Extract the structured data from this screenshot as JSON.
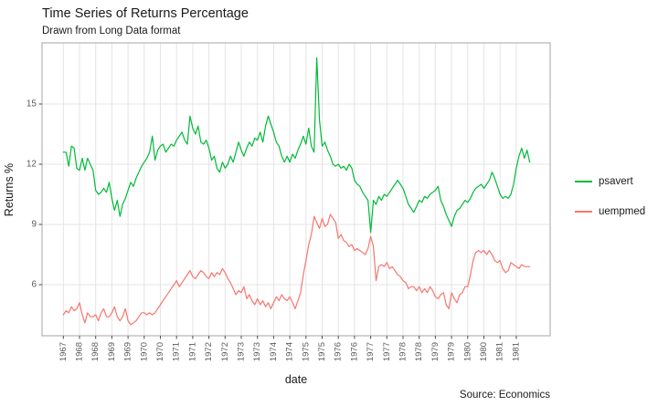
{
  "header": {
    "title": "Time Series of Returns Percentage",
    "subtitle": "Drawn from Long Data format",
    "caption": "Source: Economics"
  },
  "axes": {
    "x_title": "date",
    "y_title": "Returns %",
    "y_ticks": [
      6,
      9,
      12,
      15
    ],
    "x_tick_labels": [
      "1967",
      "1968",
      "1968",
      "1969",
      "1969",
      "1970",
      "1970",
      "1971",
      "1971",
      "1972",
      "1972",
      "1973",
      "1973",
      "1974",
      "1974",
      "1975",
      "1975",
      "1976",
      "1976",
      "1977",
      "1977",
      "1978",
      "1978",
      "1979",
      "1979",
      "1980",
      "1980",
      "1981",
      "1981"
    ]
  },
  "legend": {
    "items": [
      {
        "label": "psavert",
        "color": "#00BA38"
      },
      {
        "label": "uempmed",
        "color": "#F8766D"
      }
    ]
  },
  "chart_data": {
    "type": "line",
    "title": "Time Series of Returns Percentage",
    "subtitle": "Drawn from Long Data format",
    "caption": "Source: Economics",
    "xlabel": "date",
    "ylabel": "Returns %",
    "x_start": "1967-07",
    "x_frequency": "monthly",
    "x_tick_interval_months": 6,
    "ylim": [
      3.4,
      18.1
    ],
    "y_gridlines": [
      6,
      9,
      12,
      15
    ],
    "grid": "major-only",
    "legend_position": "right",
    "series": [
      {
        "name": "psavert",
        "color": "#00BA38",
        "values": [
          12.6,
          12.6,
          11.9,
          12.9,
          12.8,
          11.8,
          11.7,
          12.3,
          11.7,
          12.3,
          12.0,
          11.7,
          10.7,
          10.5,
          10.6,
          10.8,
          10.6,
          11.1,
          10.3,
          9.7,
          10.2,
          9.4,
          10.0,
          10.3,
          10.7,
          11.1,
          10.9,
          11.3,
          11.6,
          11.9,
          12.1,
          12.3,
          12.6,
          13.4,
          12.2,
          12.7,
          12.9,
          13.0,
          12.6,
          12.8,
          13.0,
          12.9,
          13.2,
          13.4,
          13.6,
          13.2,
          13.0,
          14.4,
          13.8,
          13.5,
          13.9,
          13.1,
          13.0,
          13.2,
          12.8,
          12.2,
          12.4,
          11.8,
          11.6,
          12.1,
          11.8,
          12.0,
          12.4,
          12.1,
          12.6,
          13.1,
          12.7,
          12.4,
          12.8,
          13.1,
          12.9,
          13.3,
          13.2,
          13.6,
          13.1,
          13.9,
          14.4,
          14.0,
          13.6,
          13.1,
          12.9,
          12.4,
          12.1,
          12.4,
          12.1,
          12.5,
          12.3,
          12.7,
          13.0,
          13.4,
          13.0,
          13.8,
          12.9,
          12.6,
          17.3,
          14.2,
          12.9,
          13.1,
          12.7,
          12.4,
          12.0,
          11.9,
          12.0,
          11.8,
          11.9,
          11.7,
          12.0,
          11.8,
          11.2,
          11.0,
          10.9,
          10.6,
          10.4,
          10.2,
          8.6,
          10.2,
          10.0,
          10.4,
          10.2,
          10.5,
          10.4,
          10.6,
          10.8,
          11.0,
          11.2,
          11.0,
          10.8,
          10.4,
          10.0,
          9.8,
          9.6,
          9.9,
          10.2,
          10.1,
          10.4,
          10.3,
          10.5,
          10.6,
          10.7,
          10.9,
          10.2,
          9.9,
          9.5,
          9.2,
          8.9,
          9.4,
          9.7,
          9.8,
          10.0,
          10.2,
          10.1,
          10.3,
          10.6,
          10.8,
          10.9,
          11.0,
          10.8,
          11.0,
          11.2,
          11.6,
          11.3,
          10.9,
          10.5,
          10.3,
          10.4,
          10.3,
          10.5,
          11.0,
          11.8,
          12.4,
          12.8,
          12.3,
          12.7,
          12.1
        ]
      },
      {
        "name": "uempmed",
        "color": "#F8766D",
        "values": [
          4.5,
          4.7,
          4.6,
          4.9,
          4.7,
          4.8,
          5.1,
          4.5,
          4.1,
          4.6,
          4.4,
          4.4,
          4.5,
          4.2,
          4.6,
          4.8,
          4.4,
          4.4,
          4.6,
          4.9,
          4.4,
          4.2,
          4.4,
          4.8,
          4.2,
          4.0,
          4.1,
          4.2,
          4.4,
          4.6,
          4.6,
          4.5,
          4.6,
          4.5,
          4.6,
          4.8,
          5.0,
          5.2,
          5.4,
          5.6,
          5.8,
          6.0,
          6.2,
          5.9,
          6.1,
          6.3,
          6.5,
          6.7,
          6.4,
          6.3,
          6.5,
          6.7,
          6.6,
          6.4,
          6.3,
          6.6,
          6.4,
          6.6,
          6.5,
          6.8,
          6.6,
          6.3,
          6.1,
          5.8,
          5.5,
          5.7,
          5.6,
          5.9,
          5.3,
          5.5,
          5.2,
          5.0,
          5.3,
          5.0,
          5.2,
          4.9,
          5.1,
          4.8,
          5.1,
          5.4,
          5.2,
          5.5,
          5.3,
          5.2,
          5.4,
          5.1,
          4.8,
          5.2,
          5.6,
          6.5,
          7.2,
          8.0,
          8.5,
          9.4,
          9.1,
          8.8,
          9.3,
          8.9,
          9.0,
          9.5,
          9.3,
          9.1,
          8.3,
          8.5,
          8.2,
          8.1,
          7.9,
          8.0,
          7.7,
          7.8,
          7.7,
          7.6,
          7.5,
          7.8,
          8.4,
          7.9,
          6.2,
          6.9,
          7.0,
          6.9,
          7.1,
          6.8,
          6.9,
          6.7,
          6.5,
          6.4,
          6.2,
          6.1,
          5.8,
          5.9,
          5.9,
          5.7,
          5.9,
          5.6,
          5.8,
          5.6,
          5.9,
          5.7,
          5.4,
          5.3,
          5.5,
          5.6,
          5.0,
          4.8,
          5.6,
          5.3,
          5.1,
          5.5,
          5.6,
          5.9,
          5.9,
          6.5,
          7.2,
          7.6,
          7.7,
          7.6,
          7.7,
          7.5,
          7.7,
          7.5,
          7.2,
          7.1,
          7.2,
          6.8,
          6.6,
          6.7,
          7.1,
          7.0,
          6.9,
          6.8,
          7.0,
          6.9,
          6.9,
          6.9
        ]
      }
    ]
  },
  "style": {
    "panel_border": "#b3b3b3",
    "gridline": "#e4e4e4",
    "tick_mark": "#4d4d4d",
    "tick_text": "#5a5a5a"
  }
}
